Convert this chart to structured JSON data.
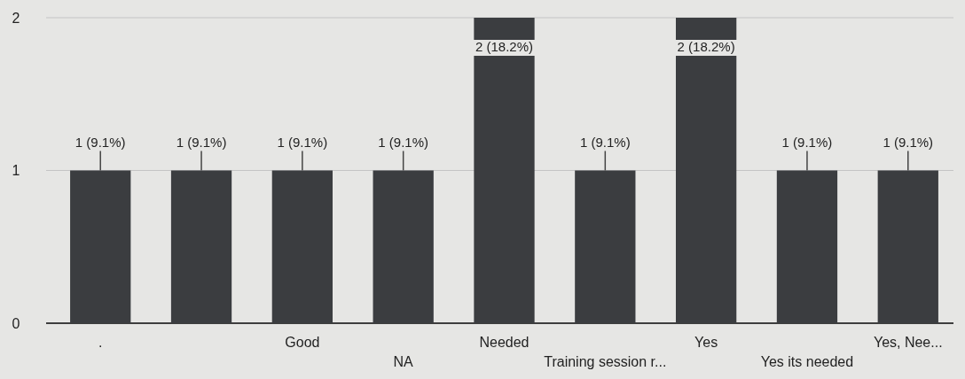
{
  "chart_data": {
    "type": "bar",
    "categories": [
      ".",
      null,
      "Good",
      "NA",
      "Needed",
      "Training session r...",
      "Yes",
      "Yes its needed",
      "Yes, Nee..."
    ],
    "values": [
      1,
      1,
      1,
      1,
      2,
      1,
      2,
      1,
      1
    ],
    "value_labels": [
      "1 (9.1%)",
      "1 (9.1%)",
      "1 (9.1%)",
      "1 (9.1%)",
      "2 (18.2%)",
      "1 (9.1%)",
      "2 (18.2%)",
      "1 (9.1%)",
      "1 (9.1%)"
    ],
    "color": "#3b3d40",
    "ylim": [
      0,
      2
    ],
    "yticks": [
      0,
      1,
      2
    ],
    "grid": "y"
  }
}
